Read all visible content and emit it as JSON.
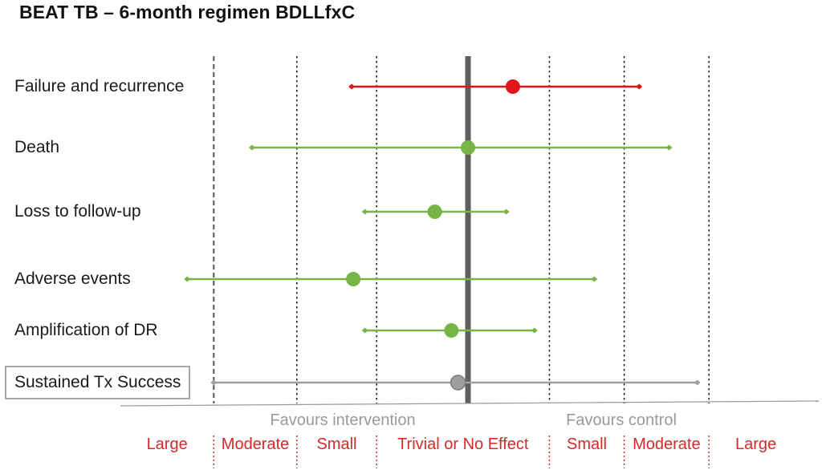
{
  "title": "BEAT TB – 6-month regimen BDLLfxC",
  "chart_data": {
    "type": "forest",
    "rows": [
      {
        "label": "Failure and recurrence",
        "estimate": 0.27,
        "lower": -0.7,
        "upper": 1.03,
        "color": "#e0161b",
        "boxed": false
      },
      {
        "label": "Death",
        "estimate": 0.0,
        "lower": -1.3,
        "upper": 1.21,
        "color": "#78b547",
        "boxed": false
      },
      {
        "label": "Loss to follow-up",
        "estimate": -0.2,
        "lower": -0.62,
        "upper": 0.23,
        "color": "#78b547",
        "boxed": false
      },
      {
        "label": "Adverse events",
        "estimate": -0.69,
        "lower": -1.69,
        "upper": 0.76,
        "color": "#78b547",
        "boxed": false
      },
      {
        "label": "Amplification of DR",
        "estimate": -0.1,
        "lower": -0.62,
        "upper": 0.4,
        "color": "#78b547",
        "boxed": false
      },
      {
        "label": "Sustained Tx Success",
        "estimate": -0.06,
        "lower": -1.53,
        "upper": 1.38,
        "color": "#9f9f9f",
        "boxed": true
      }
    ],
    "null_line": 0,
    "thresholds": [
      -1.53,
      -1.03,
      -0.55,
      0.49,
      0.94,
      1.45
    ],
    "xlim": [
      -2.0,
      2.1
    ],
    "favours": [
      "Favours intervention",
      "Favours control"
    ],
    "effect_bands": [
      "Large",
      "Moderate",
      "Small",
      "Trivial or No Effect",
      "Small",
      "Moderate",
      "Large"
    ]
  }
}
